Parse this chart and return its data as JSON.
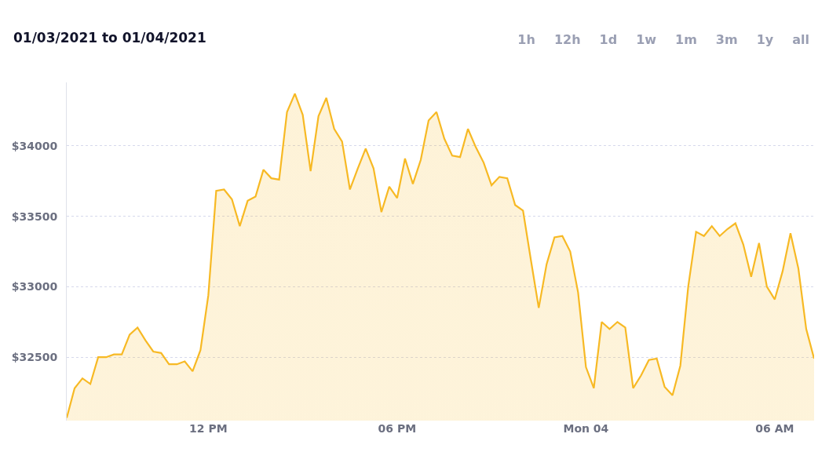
{
  "chart_data": {
    "type": "area",
    "title": "01/03/2021 to 01/04/2021",
    "annotations": [
      "1h",
      "12h",
      "1d",
      "1w",
      "1m",
      "3m",
      "1y",
      "all"
    ],
    "xlim": [
      "2021-01-03T07:30",
      "2021-01-04T07:15"
    ],
    "x": [
      "2021-01-03T07:30",
      "2021-01-03T07:45",
      "2021-01-03T08:00",
      "2021-01-03T08:15",
      "2021-01-03T08:30",
      "2021-01-03T08:45",
      "2021-01-03T09:00",
      "2021-01-03T09:15",
      "2021-01-03T09:30",
      "2021-01-03T09:45",
      "2021-01-03T10:00",
      "2021-01-03T10:15",
      "2021-01-03T10:30",
      "2021-01-03T10:45",
      "2021-01-03T11:00",
      "2021-01-03T11:15",
      "2021-01-03T11:30",
      "2021-01-03T11:45",
      "2021-01-03T12:00",
      "2021-01-03T12:15",
      "2021-01-03T12:30",
      "2021-01-03T12:45",
      "2021-01-03T13:00",
      "2021-01-03T13:15",
      "2021-01-03T13:30",
      "2021-01-03T13:45",
      "2021-01-03T14:00",
      "2021-01-03T14:15",
      "2021-01-03T14:30",
      "2021-01-03T14:45",
      "2021-01-03T15:00",
      "2021-01-03T15:15",
      "2021-01-03T15:30",
      "2021-01-03T15:45",
      "2021-01-03T16:00",
      "2021-01-03T16:15",
      "2021-01-03T16:30",
      "2021-01-03T16:45",
      "2021-01-03T17:00",
      "2021-01-03T17:15",
      "2021-01-03T17:30",
      "2021-01-03T17:45",
      "2021-01-03T18:00",
      "2021-01-03T18:15",
      "2021-01-03T18:30",
      "2021-01-03T18:45",
      "2021-01-03T19:00",
      "2021-01-03T19:15",
      "2021-01-03T19:30",
      "2021-01-03T19:45",
      "2021-01-03T20:00",
      "2021-01-03T20:15",
      "2021-01-03T20:30",
      "2021-01-03T20:45",
      "2021-01-03T21:00",
      "2021-01-03T21:15",
      "2021-01-03T21:30",
      "2021-01-03T21:45",
      "2021-01-03T22:00",
      "2021-01-03T22:15",
      "2021-01-03T22:30",
      "2021-01-03T22:45",
      "2021-01-03T23:00",
      "2021-01-03T23:15",
      "2021-01-03T23:30",
      "2021-01-03T23:45",
      "2021-01-04T00:00",
      "2021-01-04T00:15",
      "2021-01-04T00:30",
      "2021-01-04T00:45",
      "2021-01-04T01:00",
      "2021-01-04T01:15",
      "2021-01-04T01:30",
      "2021-01-04T01:45",
      "2021-01-04T02:00",
      "2021-01-04T02:15",
      "2021-01-04T02:30",
      "2021-01-04T02:45",
      "2021-01-04T03:00",
      "2021-01-04T03:15",
      "2021-01-04T03:30",
      "2021-01-04T03:45",
      "2021-01-04T04:00",
      "2021-01-04T04:15",
      "2021-01-04T04:30",
      "2021-01-04T04:45",
      "2021-01-04T05:00",
      "2021-01-04T05:15",
      "2021-01-04T05:30",
      "2021-01-04T05:45",
      "2021-01-04T06:00",
      "2021-01-04T06:15",
      "2021-01-04T06:30",
      "2021-01-04T06:45",
      "2021-01-04T07:00",
      "2021-01-04T07:15"
    ],
    "xticks": [
      {
        "value": "2021-01-03T12:00",
        "label": "12 PM"
      },
      {
        "value": "2021-01-03T18:00",
        "label": "06 PM"
      },
      {
        "value": "2021-01-04T00:00",
        "label": "Mon 04"
      },
      {
        "value": "2021-01-04T06:00",
        "label": "06 AM"
      }
    ],
    "ylim": [
      32050,
      34450
    ],
    "yticks": [
      {
        "value": 32500,
        "label": "$32500"
      },
      {
        "value": 33000,
        "label": "$33000"
      },
      {
        "value": 33500,
        "label": "$33500"
      },
      {
        "value": 34000,
        "label": "$34000"
      }
    ],
    "grid": "y",
    "legend": false,
    "marker": "none",
    "line_style": "solid",
    "series": [
      {
        "color": "#f7b924",
        "values": [
          32070,
          32280,
          32350,
          32310,
          32500,
          32500,
          32520,
          32520,
          32660,
          32710,
          32620,
          32540,
          32530,
          32450,
          32450,
          32470,
          32400,
          32550,
          32940,
          33680,
          33690,
          33620,
          33430,
          33610,
          33640,
          33830,
          33770,
          33760,
          34240,
          34370,
          34220,
          33820,
          34210,
          34340,
          34120,
          34030,
          33690,
          33840,
          33980,
          33840,
          33530,
          33710,
          33630,
          33910,
          33730,
          33900,
          34180,
          34240,
          34050,
          33930,
          33920,
          34120,
          33990,
          33880,
          33720,
          33780,
          33770,
          33580,
          33540,
          33190,
          32850,
          33160,
          33350,
          33360,
          33250,
          32960,
          32430,
          32280,
          32750,
          32700,
          32750,
          32710,
          32280,
          32370,
          32480,
          32490,
          32290,
          32230,
          32440,
          33000,
          33390,
          33360,
          33430,
          33360,
          33410,
          33450,
          33300,
          33070,
          33310,
          33000,
          32910,
          33110,
          33380,
          33130,
          32700,
          32490
        ]
      }
    ]
  }
}
